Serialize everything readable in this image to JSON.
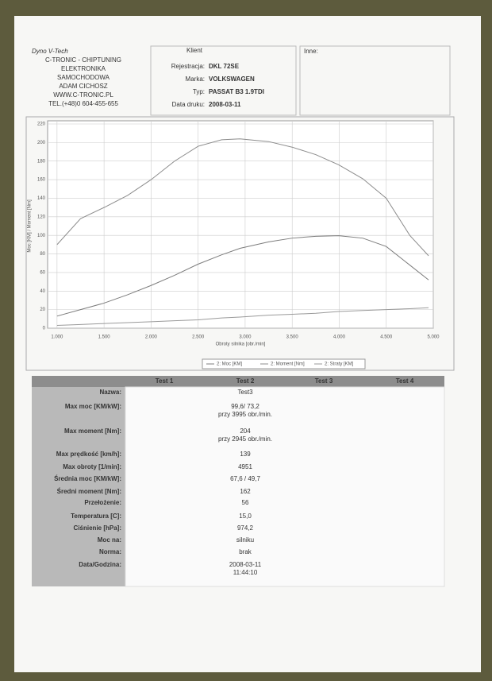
{
  "header": {
    "company": [
      "Dyno V-Tech",
      "C-TRONIC - CHIPTUNING",
      "ELEKTRONIKA",
      "SAMOCHODOWA",
      "ADAM CICHOSZ",
      "WWW.C-TRONIC.PL",
      "TEL.(+48)0 604-455-655"
    ]
  },
  "client": {
    "title": "Klient",
    "fields": [
      {
        "label": "Rejestracja:",
        "value": "DKL 72SE"
      },
      {
        "label": "Marka:",
        "value": "VOLKSWAGEN"
      },
      {
        "label": "Typ:",
        "value": "PASSAT B3 1.9TDI"
      },
      {
        "label": "Data druku:",
        "value": "2008-03-11"
      }
    ]
  },
  "other": {
    "title": "Inne:"
  },
  "chart_data": {
    "type": "line",
    "x_label": "Obroty silnika [obr./min]",
    "y_label": "Moc [KM] / Moment [Nm]",
    "x": [
      1000,
      1250,
      1500,
      1750,
      2000,
      2250,
      2500,
      2750,
      2945,
      3250,
      3500,
      3750,
      3995,
      4250,
      4500,
      4750,
      4950
    ],
    "series": [
      {
        "name": "2: Moc [KM]",
        "color": "#7c7c7c",
        "values": [
          13,
          20,
          27,
          36,
          46,
          57,
          69,
          79,
          86,
          93,
          97,
          99,
          99.6,
          97,
          88,
          68,
          52
        ]
      },
      {
        "name": "2: Moment [Nm]",
        "color": "#8c8c8c",
        "values": [
          90,
          118,
          130,
          143,
          160,
          180,
          196,
          203,
          204,
          201,
          195,
          187,
          176,
          161,
          140,
          100,
          78
        ]
      },
      {
        "name": "2: Straty [KM]",
        "color": "#9a9a9a",
        "values": [
          3,
          4,
          5,
          6,
          7,
          8,
          9,
          11,
          12,
          14,
          15,
          16,
          18,
          19,
          20,
          21,
          22
        ]
      }
    ],
    "xlim": [
      900,
      5000
    ],
    "xticks": [
      {
        "value": 1000,
        "label": "1.000"
      },
      {
        "value": 1500,
        "label": "1.500"
      },
      {
        "value": 2000,
        "label": "2.000"
      },
      {
        "value": 2500,
        "label": "2.500"
      },
      {
        "value": 3000,
        "label": "3.000"
      },
      {
        "value": 3500,
        "label": "3.500"
      },
      {
        "value": 4000,
        "label": "4.000"
      },
      {
        "value": 4500,
        "label": "4.500"
      },
      {
        "value": 5000,
        "label": "5.000"
      }
    ],
    "ylim": [
      0,
      220
    ],
    "yticks": [
      0,
      20,
      40,
      60,
      80,
      100,
      120,
      140,
      160,
      180,
      200,
      220
    ],
    "grid": true
  },
  "table": {
    "columns": [
      "Test 1",
      "Test 2",
      "Test 3",
      "Test 4"
    ],
    "rows": [
      {
        "label": "Nazwa:",
        "value": [
          "Test3"
        ]
      },
      {
        "label": "Max moc [KM/kW]:",
        "value": [
          "99,6/ 73,2",
          "przy 3995 obr./min."
        ]
      },
      {
        "label": "Max moment [Nm]:",
        "value": [
          "204",
          "przy 2945 obr./min."
        ]
      },
      {
        "label": "Max prędkość [km/h]:",
        "value": [
          "139"
        ]
      },
      {
        "label": "Max obroty [1/min]:",
        "value": [
          "4951"
        ]
      },
      {
        "label": "Średnia moc [KM/kW]:",
        "value": [
          "67,6 / 49,7"
        ]
      },
      {
        "label": "Średni moment [Nm]:",
        "value": [
          "162"
        ]
      },
      {
        "label": "Przełożenie:",
        "value": [
          "56"
        ]
      },
      {
        "label": "Temperatura [C]:",
        "value": [
          "15,0"
        ]
      },
      {
        "label": "Ciśnienie [hPa]:",
        "value": [
          "974,2"
        ]
      },
      {
        "label": "Moc na:",
        "value": [
          "silniku"
        ]
      },
      {
        "label": "Norma:",
        "value": [
          "brak"
        ]
      },
      {
        "label": "Data/Godzina:",
        "value": [
          "2008-03-11",
          "11:44:10"
        ]
      }
    ]
  }
}
